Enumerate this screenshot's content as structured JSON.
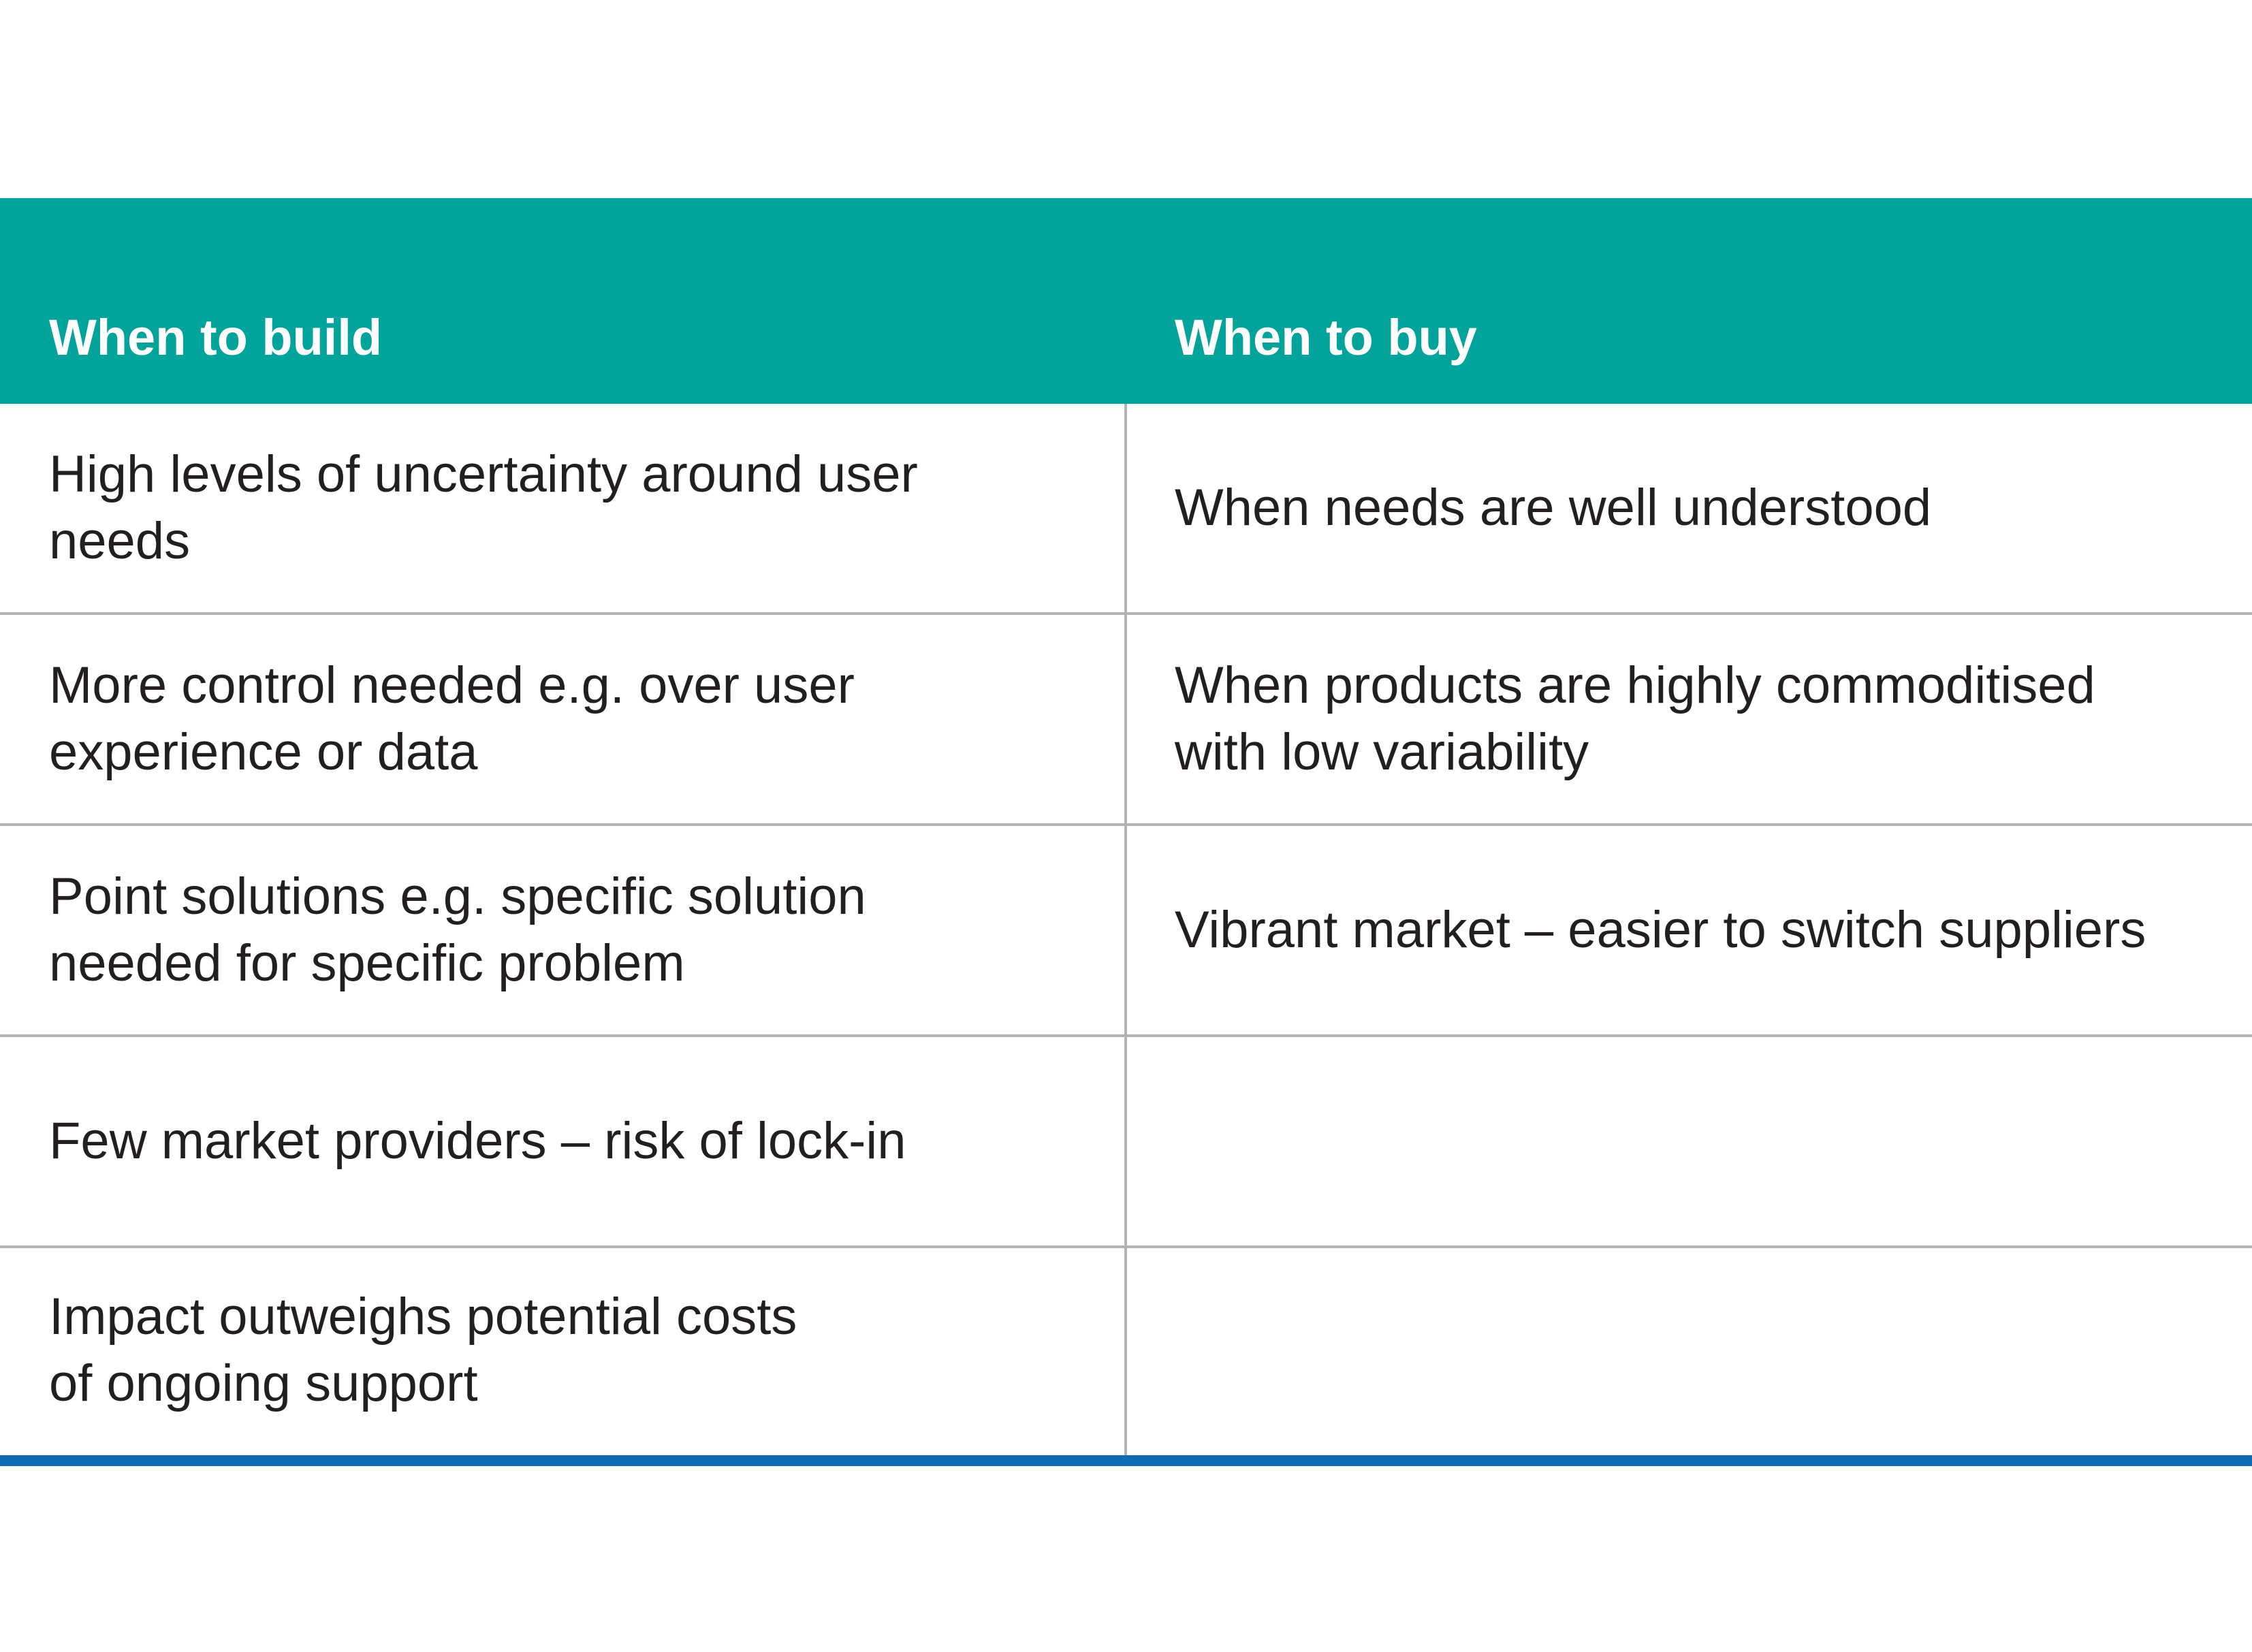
{
  "header": {
    "build": "When to build",
    "buy": "When to buy"
  },
  "rows": [
    {
      "build": "High levels of uncertainty around user needs",
      "buy": "When needs are well understood"
    },
    {
      "build": "More control needed e.g. over user\nexperience or data",
      "buy": "When products are highly commoditised\nwith low variability"
    },
    {
      "build": "Point solutions e.g. specific solution\nneeded for specific problem",
      "buy": "Vibrant market – easier to switch suppliers"
    },
    {
      "build": "Few market providers – risk of lock-in",
      "buy": ""
    },
    {
      "build": "Impact outweighs potential costs\nof ongoing support",
      "buy": ""
    }
  ],
  "colors": {
    "header": "#02a39a",
    "rule": "#116bb0",
    "grid": "#b3b3b3"
  }
}
